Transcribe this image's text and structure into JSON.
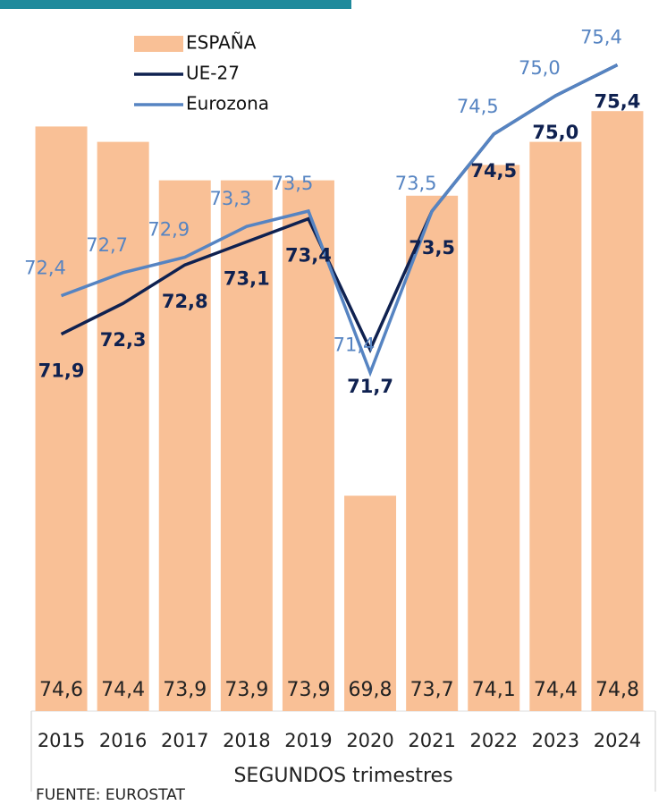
{
  "chart_data": {
    "type": "combo",
    "categories": [
      "2015",
      "2016",
      "2017",
      "2018",
      "2019",
      "2020",
      "2021",
      "2022",
      "2023",
      "2024"
    ],
    "x_label": "SEGUNDOS trimestres",
    "source": "FUENTE: EUROSTAT",
    "ylim": [
      67,
      76
    ],
    "series": [
      {
        "name": "ESPAÑA",
        "type": "bar",
        "color": "#f9c096",
        "values": [
          74.6,
          74.4,
          73.9,
          73.9,
          73.9,
          69.8,
          73.7,
          74.1,
          74.4,
          74.8
        ],
        "value_labels": [
          "74,6",
          "74,4",
          "73,9",
          "73,9",
          "73,9",
          "69,8",
          "73,7",
          "74,1",
          "74,4",
          "74,8"
        ]
      },
      {
        "name": "UE-27",
        "type": "line",
        "color": "#0f2150",
        "values": [
          71.9,
          72.3,
          72.8,
          73.1,
          73.4,
          71.7,
          73.5,
          74.5,
          75.0,
          75.4
        ],
        "value_labels": [
          "71,9",
          "72,3",
          "72,8",
          "73,1",
          "73,4",
          "71,7",
          "73,5",
          "74,5",
          "75,0",
          "75,4"
        ]
      },
      {
        "name": "Eurozona",
        "type": "line",
        "color": "#5684c2",
        "values": [
          72.4,
          72.7,
          72.9,
          73.3,
          73.5,
          71.4,
          73.5,
          74.5,
          75.0,
          75.4
        ],
        "value_labels": [
          "72,4",
          "72,7",
          "72,9",
          "73,3",
          "73,5",
          "71,4",
          "73,5",
          "74,5",
          "75,0",
          "75,4"
        ]
      }
    ]
  }
}
